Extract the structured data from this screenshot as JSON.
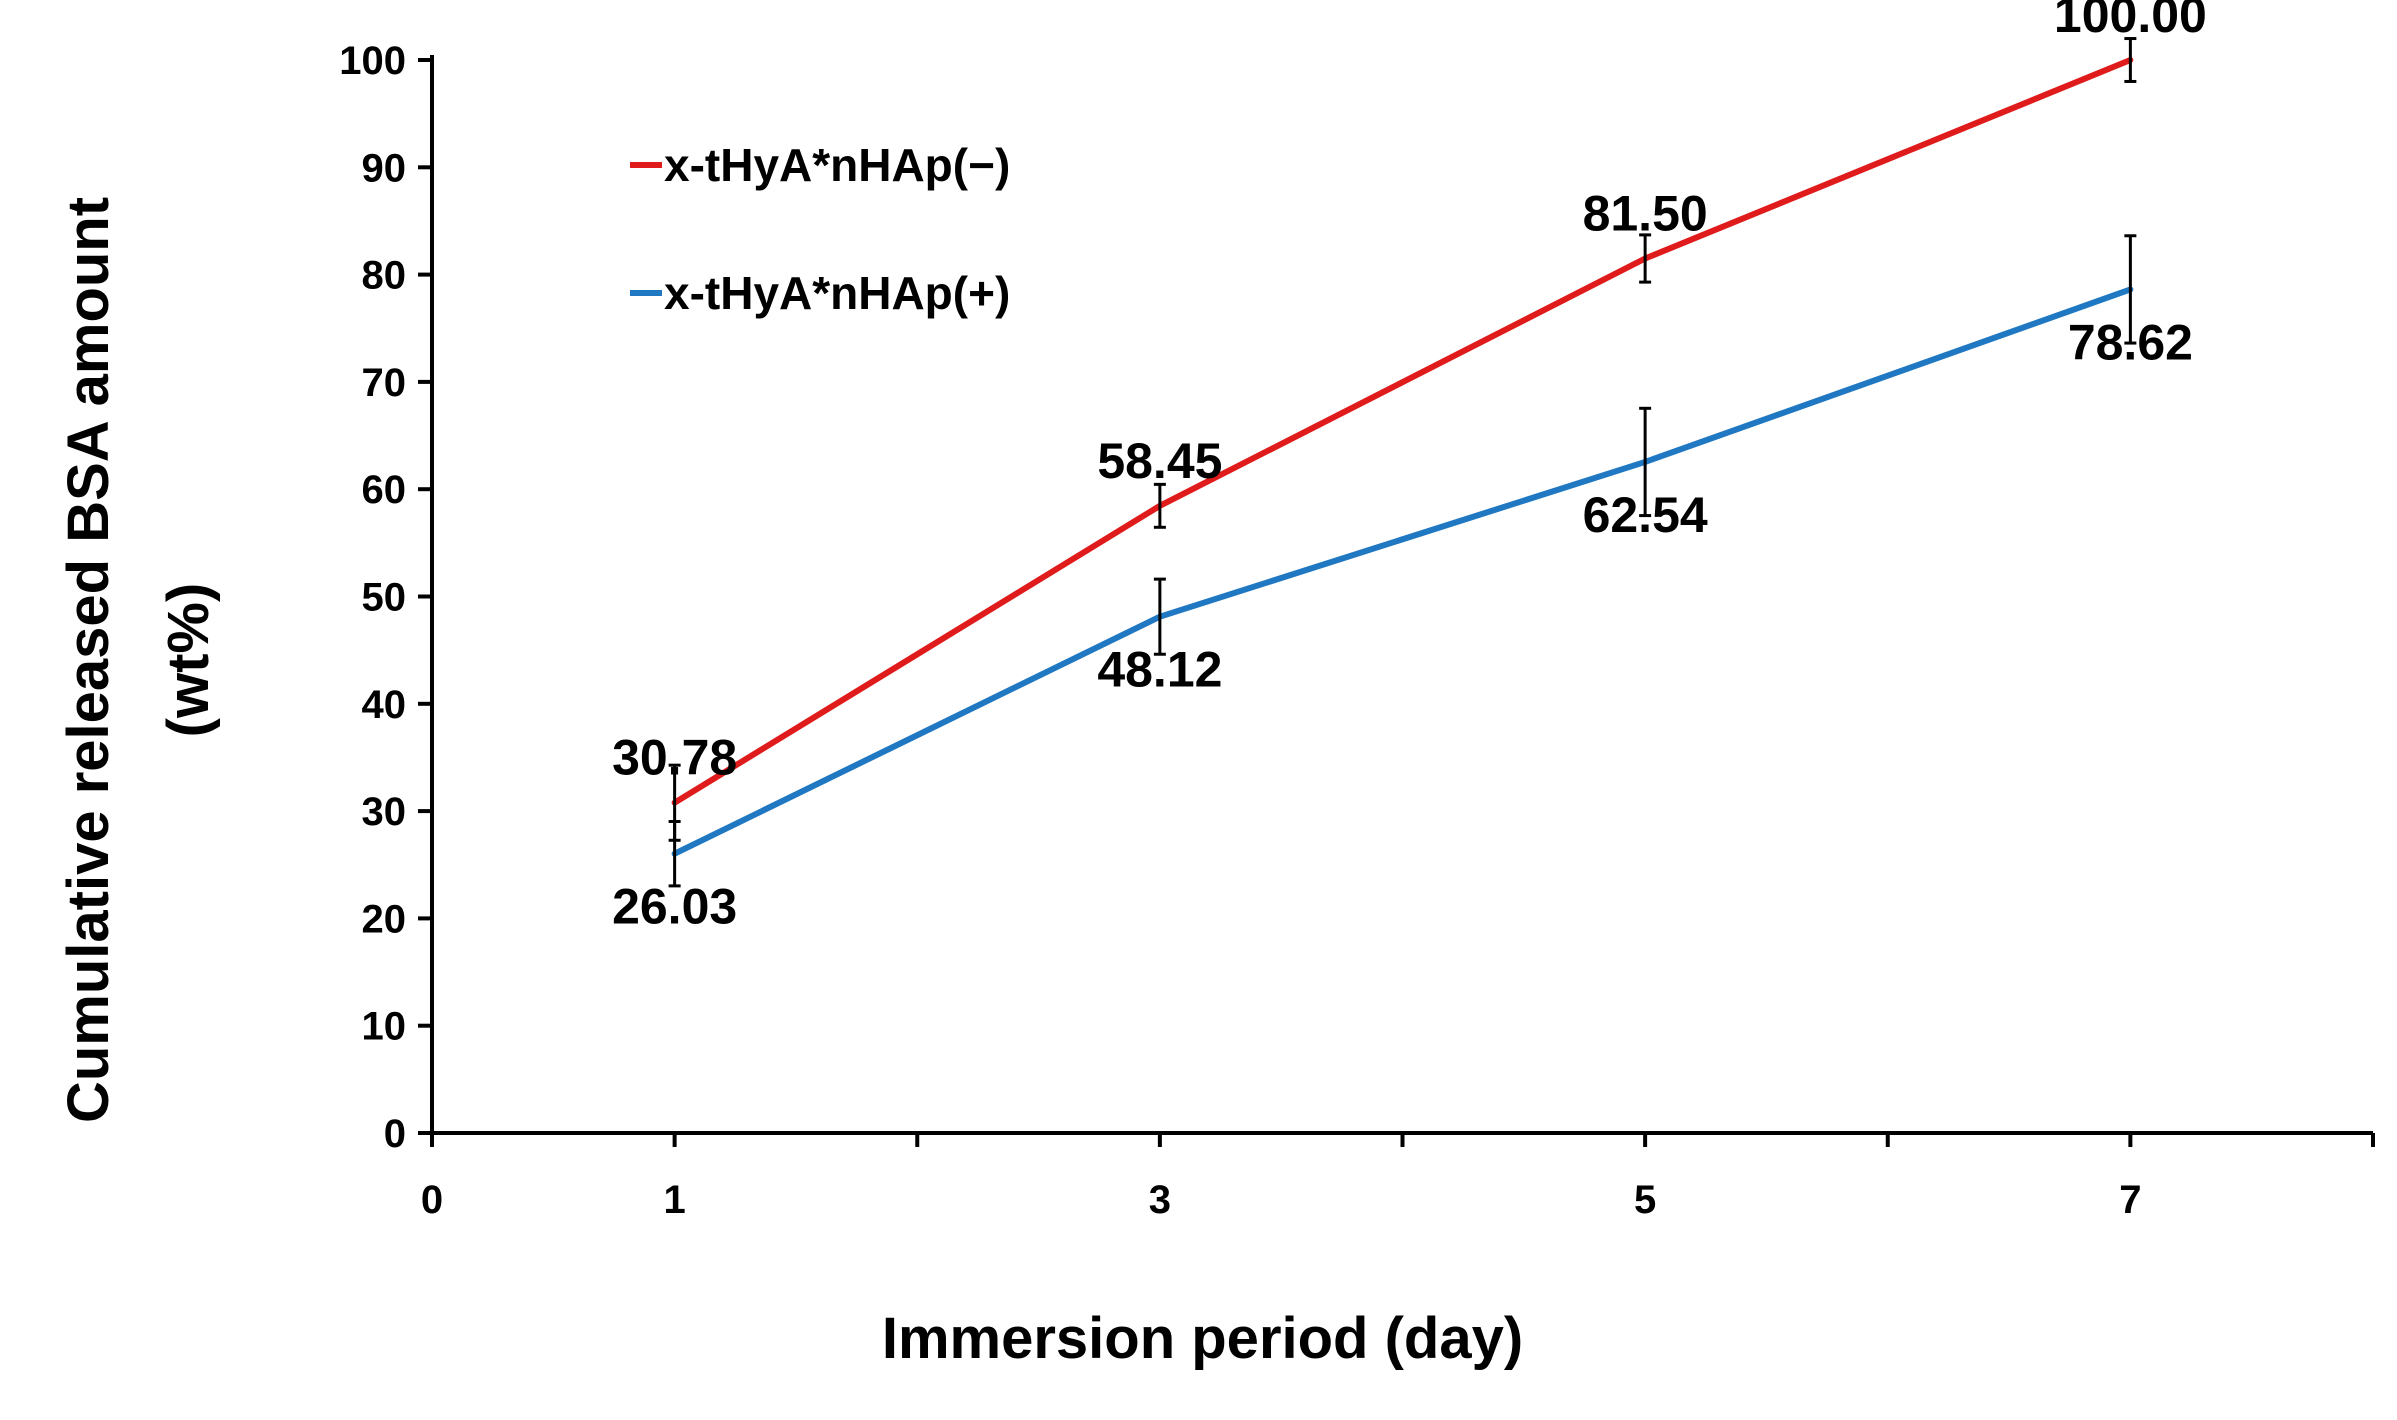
{
  "chart_data": {
    "type": "line",
    "title": "",
    "xlabel": "Immersion period (day)",
    "ylabel_line1": "Cumulative released BSA amount",
    "ylabel_line2": "(wt%)",
    "xlim": [
      0,
      8
    ],
    "ylim": [
      0,
      100
    ],
    "x_ticks": [
      0,
      1,
      3,
      5,
      7
    ],
    "x_minor_ticks": [
      0,
      1,
      2,
      3,
      4,
      5,
      6,
      7,
      8
    ],
    "y_ticks": [
      0,
      10,
      20,
      30,
      40,
      50,
      60,
      70,
      80,
      90,
      100
    ],
    "grid": false,
    "legend_position": "top-left",
    "series": [
      {
        "name": "x-tHyA*nHAp(−)",
        "color": "#e01b1b",
        "x": [
          1,
          3,
          5,
          7
        ],
        "values": [
          30.78,
          58.45,
          81.5,
          100.0
        ],
        "labels": [
          "30.78",
          "58.45",
          "81.50",
          "100.00"
        ],
        "error": [
          3.5,
          2.0,
          2.2,
          2.0
        ],
        "label_position": "above"
      },
      {
        "name": "x-tHyA*nHAp(+)",
        "color": "#1f78c1",
        "x": [
          1,
          3,
          5,
          7
        ],
        "values": [
          26.03,
          48.12,
          62.54,
          78.62
        ],
        "labels": [
          "26.03",
          "48.12",
          "62.54",
          "78.62"
        ],
        "error": [
          3.0,
          3.5,
          5.0,
          5.0
        ],
        "label_position": "below"
      }
    ]
  }
}
